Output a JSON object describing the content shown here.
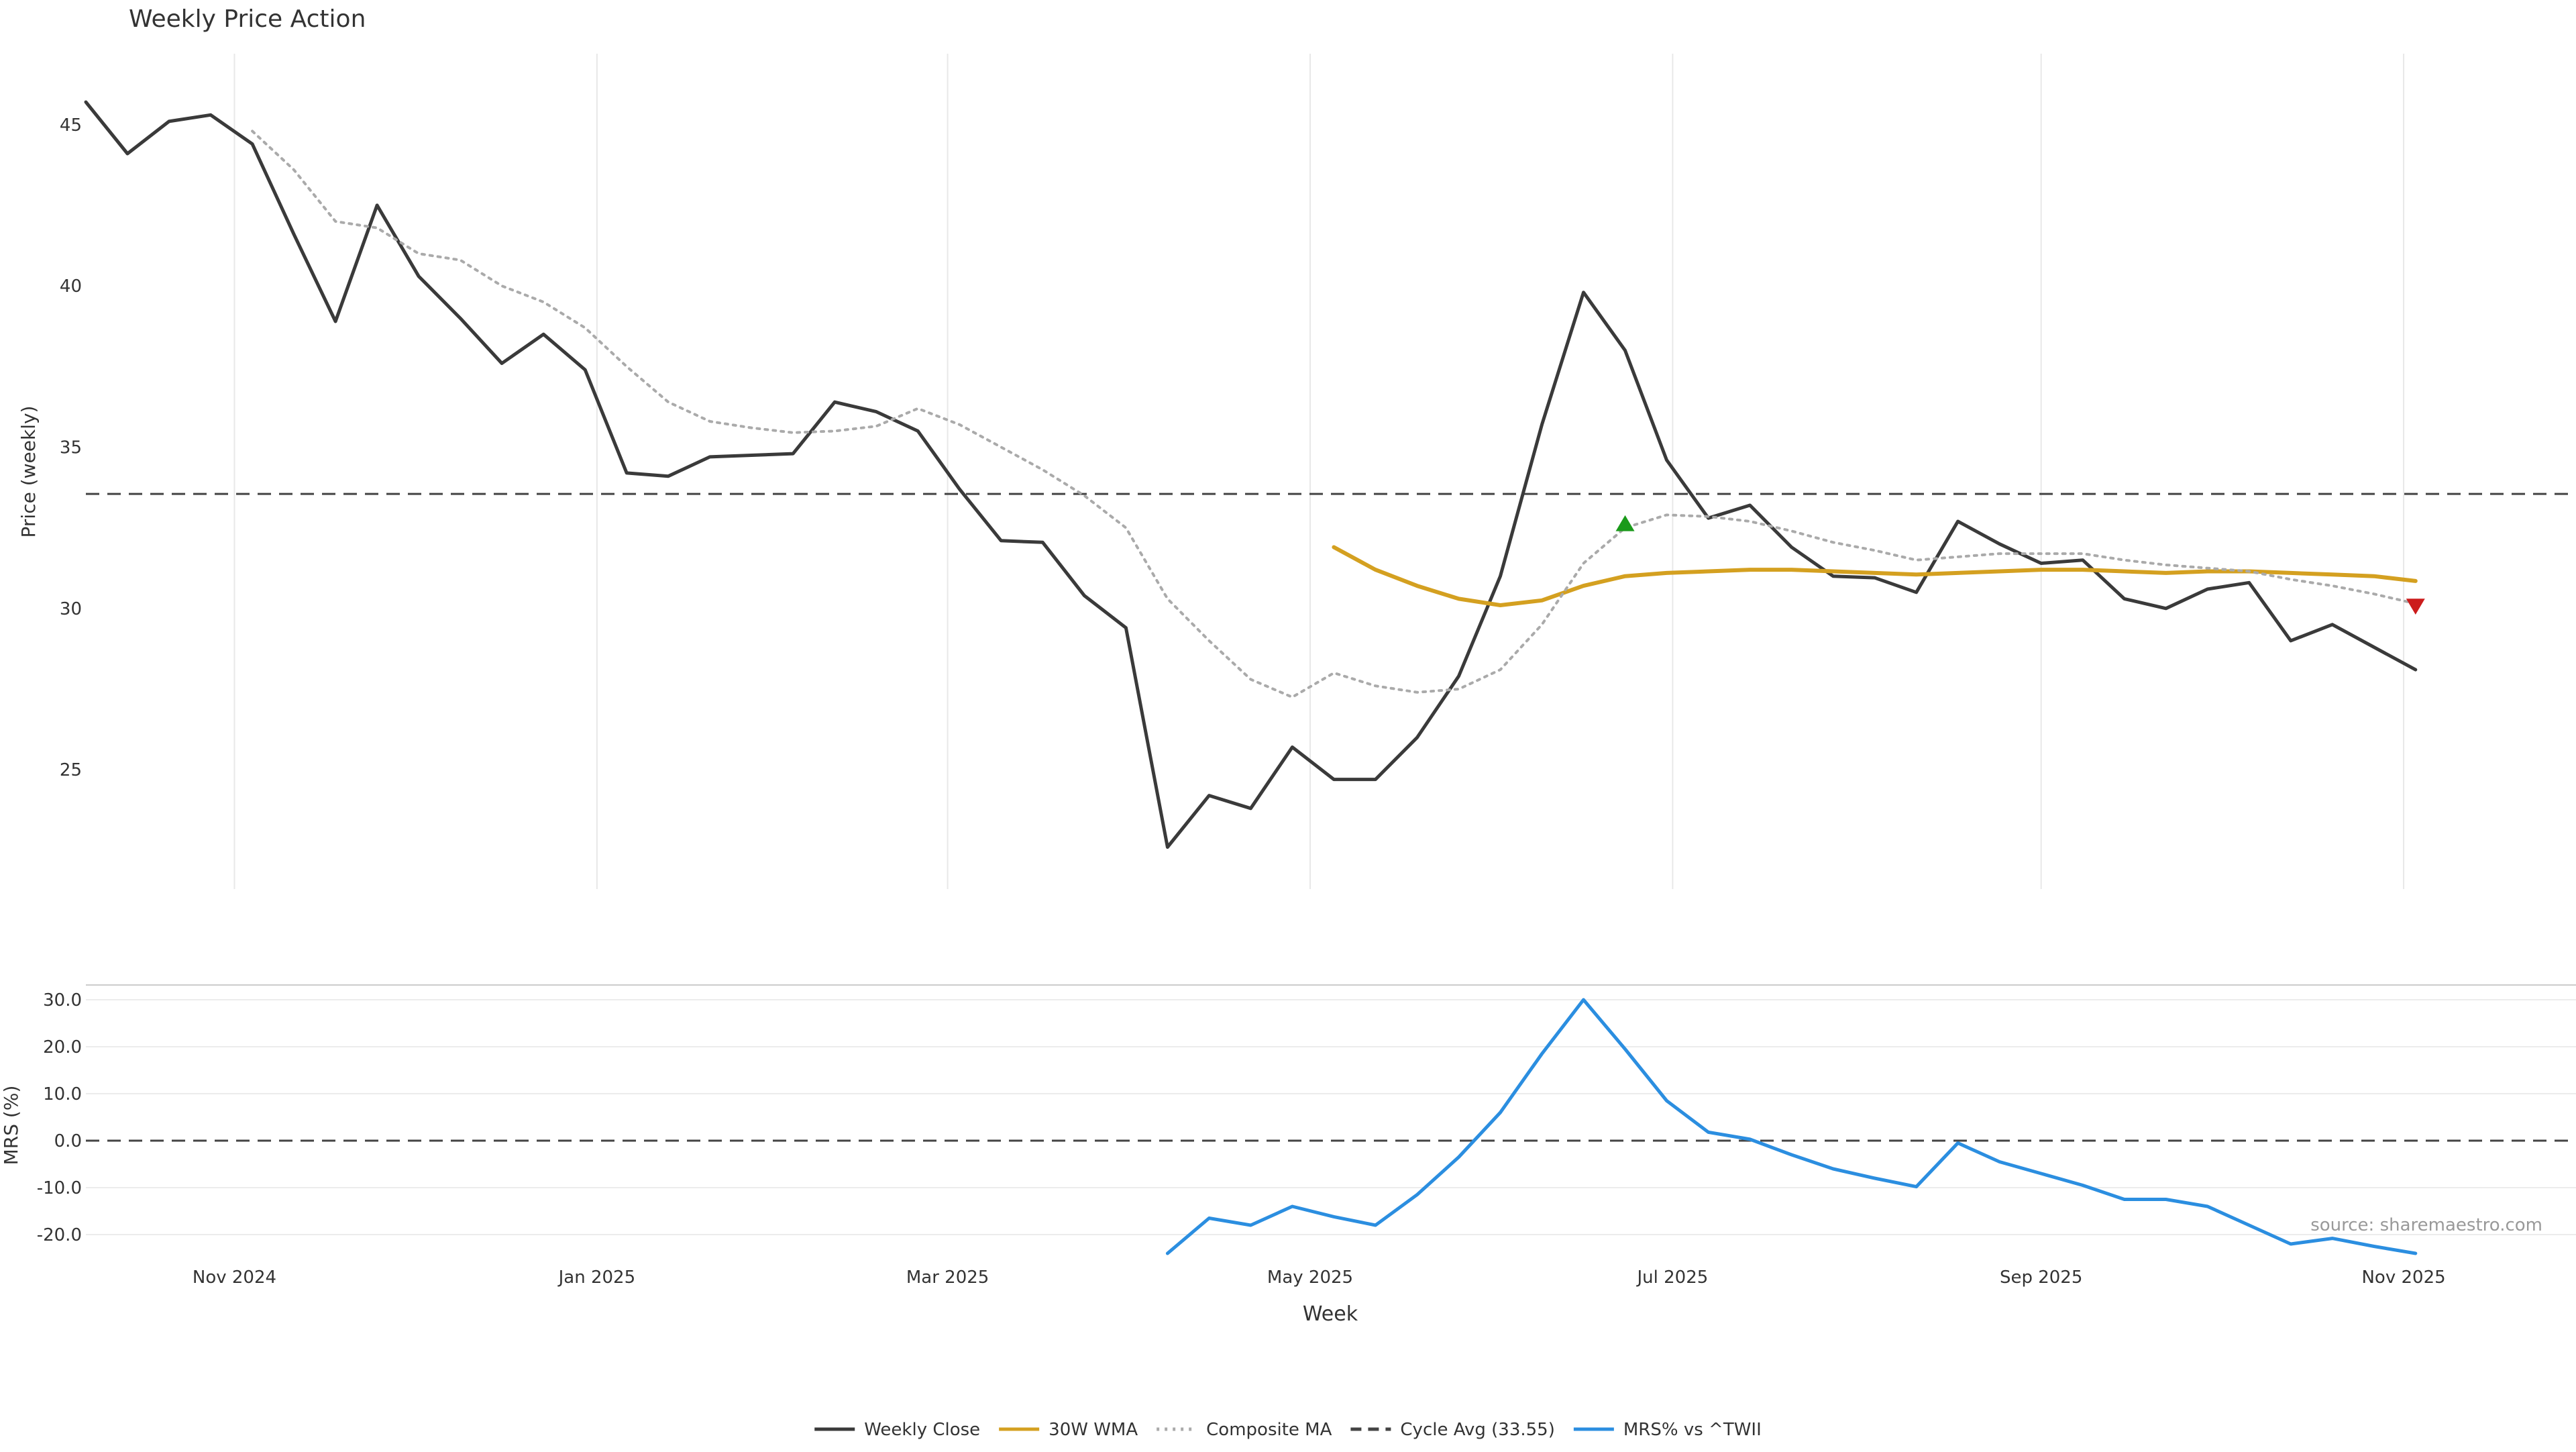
{
  "colors": {
    "close": "#3a3a3a",
    "wma": "#d4a020",
    "composite": "#aaaaaa",
    "cycle": "#444444",
    "mrs": "#2b8ee0",
    "buy_marker": "#1a9a1a",
    "sell_marker": "#cc1c1c",
    "grid": "#e8e8e8",
    "axis_text": "#333333",
    "watermark": "#999999"
  },
  "chart_data": {
    "type": "line",
    "title": "Weekly Price Action",
    "xlabel": "Week",
    "x_ticks": [
      {
        "date": "2024-11-01",
        "label": "Nov 2024"
      },
      {
        "date": "2025-01-01",
        "label": "Jan 2025"
      },
      {
        "date": "2025-03-01",
        "label": "Mar 2025"
      },
      {
        "date": "2025-05-01",
        "label": "May 2025"
      },
      {
        "date": "2025-07-01",
        "label": "Jul 2025"
      },
      {
        "date": "2025-09-01",
        "label": "Sep 2025"
      },
      {
        "date": "2025-11-01",
        "label": "Nov 2025"
      }
    ],
    "x_range": [
      "2024-10-07",
      "2025-11-30"
    ],
    "annotation": "source: sharemaestro.com",
    "price_panel": {
      "ylabel": "Price (weekly)",
      "ylim": [
        21.3,
        47.2
      ],
      "y_ticks": [
        25,
        30,
        35,
        40,
        45
      ],
      "cycle_avg": 33.55,
      "series": [
        {
          "name": "Weekly Close",
          "key": "close",
          "style": "solid",
          "points": [
            [
              "2024-10-07",
              45.7
            ],
            [
              "2024-10-14",
              44.1
            ],
            [
              "2024-10-21",
              45.1
            ],
            [
              "2024-10-28",
              45.3
            ],
            [
              "2024-11-04",
              44.4
            ],
            [
              "2024-11-11",
              41.6
            ],
            [
              "2024-11-18",
              38.9
            ],
            [
              "2024-11-25",
              42.5
            ],
            [
              "2024-12-02",
              40.3
            ],
            [
              "2024-12-09",
              39.0
            ],
            [
              "2024-12-16",
              37.6
            ],
            [
              "2024-12-23",
              38.5
            ],
            [
              "2024-12-30",
              37.4
            ],
            [
              "2025-01-06",
              34.2
            ],
            [
              "2025-01-13",
              34.1
            ],
            [
              "2025-01-20",
              34.7
            ],
            [
              "2025-01-27",
              34.75
            ],
            [
              "2025-02-03",
              34.8
            ],
            [
              "2025-02-10",
              36.4
            ],
            [
              "2025-02-17",
              36.1
            ],
            [
              "2025-02-24",
              35.5
            ],
            [
              "2025-03-03",
              33.7
            ],
            [
              "2025-03-10",
              32.1
            ],
            [
              "2025-03-17",
              32.05
            ],
            [
              "2025-03-24",
              30.4
            ],
            [
              "2025-03-31",
              29.4
            ],
            [
              "2025-04-07",
              22.6
            ],
            [
              "2025-04-14",
              24.2
            ],
            [
              "2025-04-21",
              23.8
            ],
            [
              "2025-04-28",
              25.7
            ],
            [
              "2025-05-05",
              24.7
            ],
            [
              "2025-05-12",
              24.7
            ],
            [
              "2025-05-19",
              26.0
            ],
            [
              "2025-05-26",
              27.9
            ],
            [
              "2025-06-02",
              31.0
            ],
            [
              "2025-06-09",
              35.7
            ],
            [
              "2025-06-16",
              39.8
            ],
            [
              "2025-06-23",
              38.0
            ],
            [
              "2025-06-30",
              34.6
            ],
            [
              "2025-07-07",
              32.8
            ],
            [
              "2025-07-14",
              33.2
            ],
            [
              "2025-07-21",
              31.9
            ],
            [
              "2025-07-28",
              31.0
            ],
            [
              "2025-08-04",
              30.95
            ],
            [
              "2025-08-11",
              30.5
            ],
            [
              "2025-08-18",
              32.7
            ],
            [
              "2025-08-25",
              32.0
            ],
            [
              "2025-09-01",
              31.4
            ],
            [
              "2025-09-08",
              31.5
            ],
            [
              "2025-09-15",
              30.3
            ],
            [
              "2025-09-22",
              30.0
            ],
            [
              "2025-09-29",
              30.6
            ],
            [
              "2025-10-06",
              30.8
            ],
            [
              "2025-10-13",
              29.0
            ],
            [
              "2025-10-20",
              29.5
            ],
            [
              "2025-10-27",
              28.8
            ],
            [
              "2025-11-03",
              28.1
            ]
          ]
        },
        {
          "name": "30W WMA",
          "key": "wma",
          "style": "solid",
          "points": [
            [
              "2025-05-05",
              31.9
            ],
            [
              "2025-05-12",
              31.2
            ],
            [
              "2025-05-19",
              30.7
            ],
            [
              "2025-05-26",
              30.3
            ],
            [
              "2025-06-02",
              30.1
            ],
            [
              "2025-06-09",
              30.25
            ],
            [
              "2025-06-16",
              30.7
            ],
            [
              "2025-06-23",
              31.0
            ],
            [
              "2025-06-30",
              31.1
            ],
            [
              "2025-07-07",
              31.15
            ],
            [
              "2025-07-14",
              31.2
            ],
            [
              "2025-07-21",
              31.2
            ],
            [
              "2025-07-28",
              31.15
            ],
            [
              "2025-08-04",
              31.1
            ],
            [
              "2025-08-11",
              31.05
            ],
            [
              "2025-08-18",
              31.1
            ],
            [
              "2025-08-25",
              31.15
            ],
            [
              "2025-09-01",
              31.2
            ],
            [
              "2025-09-08",
              31.2
            ],
            [
              "2025-09-15",
              31.15
            ],
            [
              "2025-09-22",
              31.1
            ],
            [
              "2025-09-29",
              31.15
            ],
            [
              "2025-10-06",
              31.15
            ],
            [
              "2025-10-13",
              31.1
            ],
            [
              "2025-10-20",
              31.05
            ],
            [
              "2025-10-27",
              31.0
            ],
            [
              "2025-11-03",
              30.85
            ]
          ]
        },
        {
          "name": "Composite MA",
          "key": "composite",
          "style": "dotted",
          "points": [
            [
              "2024-11-04",
              44.8
            ],
            [
              "2024-11-11",
              43.6
            ],
            [
              "2024-11-18",
              42.0
            ],
            [
              "2024-11-25",
              41.8
            ],
            [
              "2024-12-02",
              41.0
            ],
            [
              "2024-12-09",
              40.8
            ],
            [
              "2024-12-16",
              40.0
            ],
            [
              "2024-12-23",
              39.5
            ],
            [
              "2024-12-30",
              38.7
            ],
            [
              "2025-01-06",
              37.5
            ],
            [
              "2025-01-13",
              36.4
            ],
            [
              "2025-01-20",
              35.8
            ],
            [
              "2025-01-27",
              35.6
            ],
            [
              "2025-02-03",
              35.45
            ],
            [
              "2025-02-10",
              35.5
            ],
            [
              "2025-02-17",
              35.65
            ],
            [
              "2025-02-24",
              36.2
            ],
            [
              "2025-03-03",
              35.7
            ],
            [
              "2025-03-10",
              35.0
            ],
            [
              "2025-03-17",
              34.3
            ],
            [
              "2025-03-24",
              33.5
            ],
            [
              "2025-03-31",
              32.5
            ],
            [
              "2025-04-07",
              30.3
            ],
            [
              "2025-04-14",
              29.0
            ],
            [
              "2025-04-21",
              27.8
            ],
            [
              "2025-04-28",
              27.25
            ],
            [
              "2025-05-05",
              28.0
            ],
            [
              "2025-05-12",
              27.6
            ],
            [
              "2025-05-19",
              27.4
            ],
            [
              "2025-05-26",
              27.5
            ],
            [
              "2025-06-02",
              28.1
            ],
            [
              "2025-06-09",
              29.5
            ],
            [
              "2025-06-16",
              31.4
            ],
            [
              "2025-06-23",
              32.5
            ],
            [
              "2025-06-30",
              32.9
            ],
            [
              "2025-07-07",
              32.85
            ],
            [
              "2025-07-14",
              32.7
            ],
            [
              "2025-07-21",
              32.4
            ],
            [
              "2025-07-28",
              32.05
            ],
            [
              "2025-08-04",
              31.8
            ],
            [
              "2025-08-11",
              31.5
            ],
            [
              "2025-08-18",
              31.6
            ],
            [
              "2025-08-25",
              31.7
            ],
            [
              "2025-09-01",
              31.7
            ],
            [
              "2025-09-08",
              31.7
            ],
            [
              "2025-09-15",
              31.5
            ],
            [
              "2025-09-22",
              31.35
            ],
            [
              "2025-09-29",
              31.25
            ],
            [
              "2025-10-06",
              31.15
            ],
            [
              "2025-10-13",
              30.9
            ],
            [
              "2025-10-20",
              30.7
            ],
            [
              "2025-10-27",
              30.45
            ],
            [
              "2025-11-03",
              30.15
            ]
          ]
        }
      ],
      "markers": [
        {
          "type": "buy",
          "date": "2025-06-23",
          "value": 32.6
        },
        {
          "type": "sell",
          "date": "2025-11-03",
          "value": 30.1
        }
      ]
    },
    "mrs_panel": {
      "ylabel": "MRS (%)",
      "ylim": [
        -24,
        33
      ],
      "y_ticks": [
        -20,
        -10,
        0,
        10,
        20,
        30
      ],
      "y_tick_labels": [
        "-20.0",
        "-10.0",
        "0.0",
        "10.0",
        "20.0",
        "30.0"
      ],
      "series": [
        {
          "name": "MRS% vs ^TWII",
          "key": "mrs",
          "style": "solid",
          "points": [
            [
              "2025-04-07",
              -24.0
            ],
            [
              "2025-04-14",
              -16.5
            ],
            [
              "2025-04-21",
              -18.0
            ],
            [
              "2025-04-28",
              -14.0
            ],
            [
              "2025-05-05",
              -16.2
            ],
            [
              "2025-05-12",
              -18.0
            ],
            [
              "2025-05-19",
              -11.5
            ],
            [
              "2025-05-26",
              -3.5
            ],
            [
              "2025-06-02",
              6.0
            ],
            [
              "2025-06-09",
              18.5
            ],
            [
              "2025-06-16",
              30.0
            ],
            [
              "2025-06-23",
              19.5
            ],
            [
              "2025-06-30",
              8.5
            ],
            [
              "2025-07-07",
              1.8
            ],
            [
              "2025-07-14",
              0.3
            ],
            [
              "2025-07-21",
              -3.0
            ],
            [
              "2025-07-28",
              -6.0
            ],
            [
              "2025-08-04",
              -8.0
            ],
            [
              "2025-08-11",
              -9.8
            ],
            [
              "2025-08-18",
              -0.5
            ],
            [
              "2025-08-25",
              -4.5
            ],
            [
              "2025-09-01",
              -7.0
            ],
            [
              "2025-09-08",
              -9.5
            ],
            [
              "2025-09-15",
              -12.5
            ],
            [
              "2025-09-22",
              -12.5
            ],
            [
              "2025-09-29",
              -14.0
            ],
            [
              "2025-10-06",
              -18.0
            ],
            [
              "2025-10-13",
              -22.0
            ],
            [
              "2025-10-20",
              -20.8
            ],
            [
              "2025-10-27",
              -22.5
            ],
            [
              "2025-11-03",
              -24.0
            ]
          ]
        }
      ]
    },
    "legend": {
      "placement": "bottom-center",
      "entries": [
        {
          "label": "Weekly Close",
          "key": "close",
          "style": "solid"
        },
        {
          "label": "30W WMA",
          "key": "wma",
          "style": "solid"
        },
        {
          "label": "Composite MA",
          "key": "composite",
          "style": "dotted"
        },
        {
          "label": "Cycle Avg (33.55)",
          "key": "cycle",
          "style": "dashed"
        },
        {
          "label": "MRS% vs ^TWII",
          "key": "mrs",
          "style": "solid"
        }
      ]
    }
  }
}
